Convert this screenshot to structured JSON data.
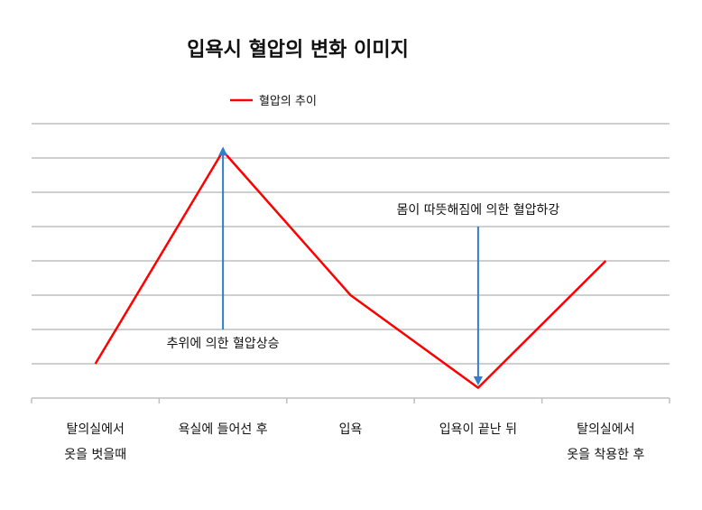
{
  "chart_data": {
    "type": "line",
    "title": "입욕시 혈압의 변화 이미지",
    "categories": [
      [
        "탈의실에서",
        "옷을 벗을때"
      ],
      [
        "욕실에 들어선 후"
      ],
      [
        "입욕"
      ],
      [
        "입욕이 끝난 뒤"
      ],
      [
        "탈의실에서",
        "옷을 착용한 후"
      ]
    ],
    "x": [
      0,
      1,
      2,
      3,
      4,
      5
    ],
    "series": [
      {
        "name": "혈압의 추이",
        "color": "#ff0000",
        "values": [
          1,
          7.2,
          3,
          0.3,
          4
        ]
      }
    ],
    "point_x": [
      0.5,
      1.5,
      2.5,
      3.5,
      4.5
    ],
    "ylim": [
      0,
      8
    ],
    "gridlines": [
      1,
      2,
      3,
      4,
      5,
      6,
      7,
      8
    ],
    "grid": true,
    "legend": "top-center",
    "annotations": [
      {
        "text": "추위에 의한 혈압상승",
        "arrow_x": 1.5,
        "arrow_from": 2,
        "arrow_to": 7.2,
        "arrow_color": "#2f7fcf"
      },
      {
        "text": "몸이 따뜻해짐에 의한 혈압하강",
        "arrow_x": 3.5,
        "arrow_from": 5,
        "arrow_to": 0.5,
        "arrow_color": "#2f7fcf"
      }
    ]
  }
}
